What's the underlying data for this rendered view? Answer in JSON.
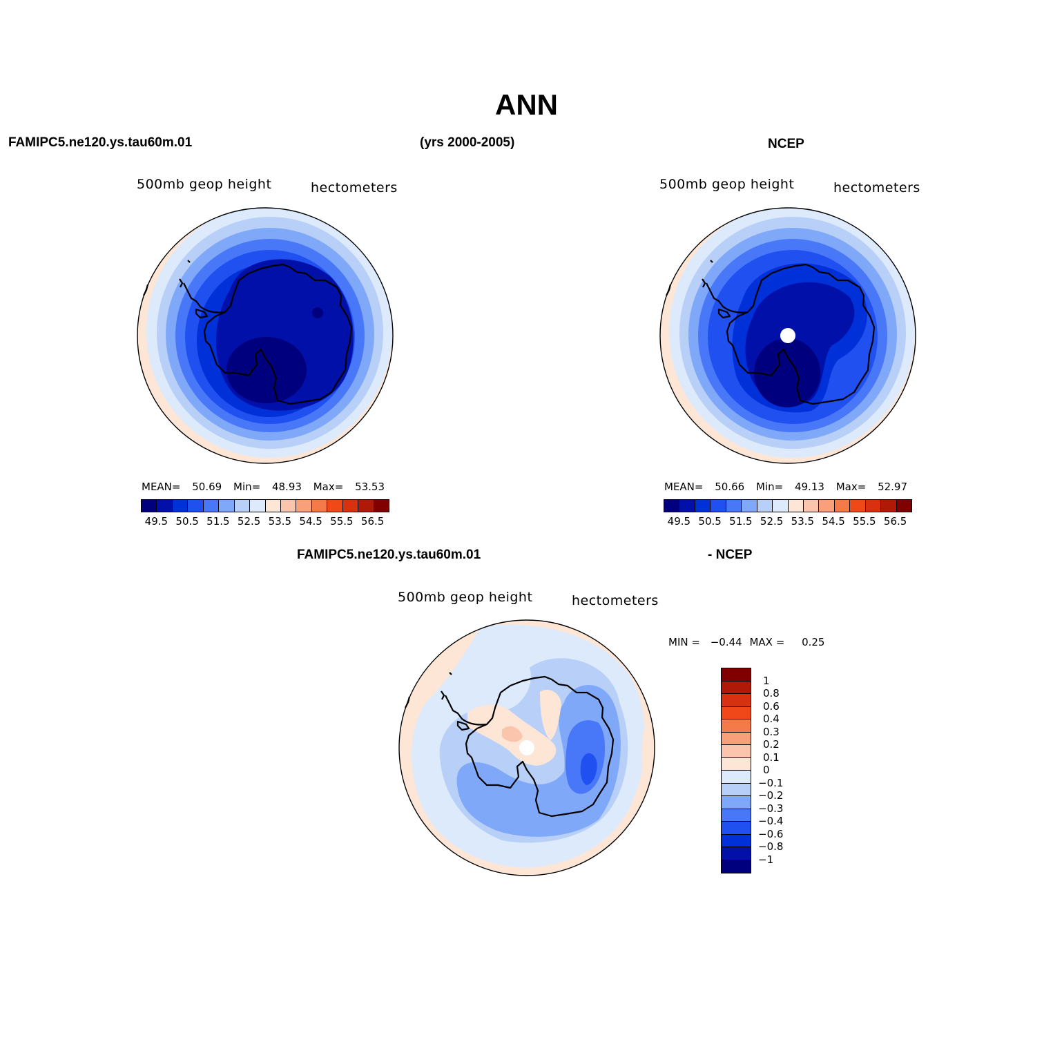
{
  "figure": {
    "title": "ANN",
    "top_left_header": "FAMIPC5.ne120.ys.tau60m.01",
    "top_center_header": "(yrs 2000-2005)",
    "top_right_header": "NCEP",
    "bottom_left_header": "FAMIPC5.ne120.ys.tau60m.01",
    "bottom_right_header": "- NCEP"
  },
  "panels": {
    "model": {
      "variable": "500mb  geop height",
      "units": "hectometers",
      "mean_label": "MEAN=",
      "mean": "50.69",
      "min_label": "Min=",
      "min": "48.93",
      "max_label": "Max=",
      "max": "53.53"
    },
    "ncep": {
      "variable": "500mb  geop height",
      "units": "hectometers",
      "mean_label": "MEAN=",
      "mean": "50.66",
      "min_label": "Min=",
      "min": "49.13",
      "max_label": "Max=",
      "max": "52.97"
    },
    "diff": {
      "variable": "500mb  geop height",
      "units": "hectometers",
      "min_label": "MIN =",
      "min": "−0.44",
      "max_label": "MAX =",
      "max": "0.25"
    }
  },
  "colorbar_abs": {
    "colors": [
      "#00007f",
      "#0010a8",
      "#0030d8",
      "#2050f0",
      "#4878f8",
      "#80a8f8",
      "#b8d0f8",
      "#dceafc",
      "#fde6d6",
      "#fbc4ac",
      "#f8a07a",
      "#f47a4a",
      "#f04818",
      "#d83010",
      "#b01808",
      "#800000"
    ],
    "ticks": [
      "49.5",
      "50.5",
      "51.5",
      "52.5",
      "53.5",
      "54.5",
      "55.5",
      "56.5"
    ]
  },
  "colorbar_diff": {
    "colors": [
      "#800000",
      "#b01808",
      "#d83010",
      "#f04818",
      "#f47a4a",
      "#f8a07a",
      "#fbc4ac",
      "#fde6d6",
      "#dceafc",
      "#b8d0f8",
      "#80a8f8",
      "#4878f8",
      "#2050f0",
      "#0030d8",
      "#0010a8",
      "#00007f"
    ],
    "ticks": [
      "1",
      "0.8",
      "0.6",
      "0.4",
      "0.3",
      "0.2",
      "0.1",
      "0",
      "−0.1",
      "−0.2",
      "−0.3",
      "−0.4",
      "−0.6",
      "−0.8",
      "−1"
    ]
  }
}
